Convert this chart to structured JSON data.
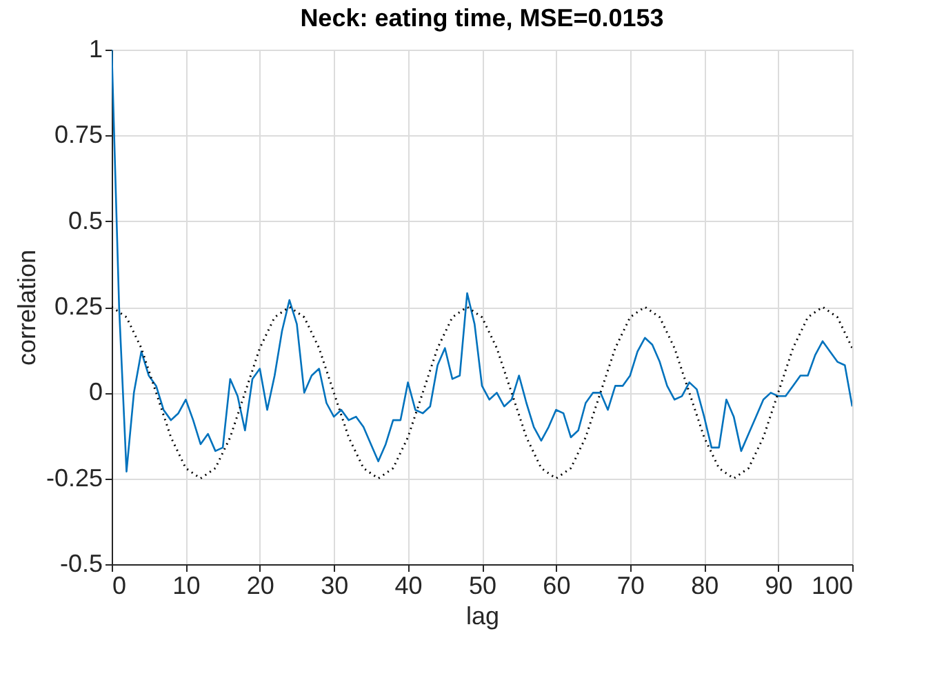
{
  "chart_data": {
    "type": "line",
    "title": "Neck: eating time, MSE=0.0153",
    "xlabel": "lag",
    "ylabel": "correlation",
    "xlim": [
      0,
      100
    ],
    "xticks": [
      0,
      10,
      20,
      30,
      40,
      50,
      60,
      70,
      80,
      90,
      100
    ],
    "ylim": [
      -0.5,
      1
    ],
    "yticks": [
      -0.5,
      -0.25,
      0,
      0.25,
      0.5,
      0.75,
      1
    ],
    "grid": true,
    "series": [
      {
        "color": "#0072bd",
        "line_style": "solid",
        "x": [
          0,
          1,
          2,
          3,
          4,
          5,
          6,
          7,
          8,
          9,
          10,
          11,
          12,
          13,
          14,
          15,
          16,
          17,
          18,
          19,
          20,
          21,
          22,
          23,
          24,
          25,
          26,
          27,
          28,
          29,
          30,
          31,
          32,
          33,
          34,
          35,
          36,
          37,
          38,
          39,
          40,
          41,
          42,
          43,
          44,
          45,
          46,
          47,
          48,
          49,
          50,
          51,
          52,
          53,
          54,
          55,
          56,
          57,
          58,
          59,
          60,
          61,
          62,
          63,
          64,
          65,
          66,
          67,
          68,
          69,
          70,
          71,
          72,
          73,
          74,
          75,
          76,
          77,
          78,
          79,
          80,
          81,
          82,
          83,
          84,
          85,
          86,
          87,
          88,
          89,
          90,
          91,
          92,
          93,
          94,
          95,
          96,
          97,
          98,
          99,
          100
        ],
        "values": [
          1.0,
          0.25,
          -0.23,
          0.0,
          0.12,
          0.05,
          0.02,
          -0.05,
          -0.08,
          -0.06,
          -0.02,
          -0.08,
          -0.15,
          -0.12,
          -0.17,
          -0.16,
          0.04,
          -0.01,
          -0.11,
          0.04,
          0.07,
          -0.05,
          0.05,
          0.18,
          0.27,
          0.2,
          0.0,
          0.05,
          0.07,
          -0.03,
          -0.07,
          -0.05,
          -0.08,
          -0.07,
          -0.1,
          -0.15,
          -0.2,
          -0.15,
          -0.08,
          -0.08,
          0.03,
          -0.05,
          -0.06,
          -0.04,
          0.08,
          0.13,
          0.04,
          0.05,
          0.29,
          0.2,
          0.02,
          -0.02,
          0.0,
          -0.04,
          -0.02,
          0.05,
          -0.03,
          -0.1,
          -0.14,
          -0.1,
          -0.05,
          -0.06,
          -0.13,
          -0.11,
          -0.03,
          0.0,
          0.0,
          -0.05,
          0.02,
          0.02,
          0.05,
          0.12,
          0.16,
          0.14,
          0.09,
          0.02,
          -0.02,
          -0.01,
          0.03,
          0.01,
          -0.07,
          -0.16,
          -0.16,
          -0.02,
          -0.07,
          -0.17,
          -0.12,
          -0.07,
          -0.02,
          0.0,
          -0.01,
          -0.01,
          0.02,
          0.05,
          0.05,
          0.11,
          0.15,
          0.12,
          0.09,
          0.08,
          -0.04
        ]
      },
      {
        "color": "#000000",
        "line_style": "dotted",
        "x": [
          0,
          2,
          4,
          6,
          8,
          10,
          12,
          14,
          16,
          18,
          20,
          22,
          24,
          26,
          28,
          30,
          32,
          34,
          36,
          38,
          40,
          42,
          44,
          46,
          48,
          50,
          52,
          54,
          56,
          58,
          60,
          62,
          64,
          66,
          68,
          70,
          72,
          74,
          76,
          78,
          80,
          82,
          84,
          86,
          88,
          90,
          92,
          94,
          96,
          98,
          100
        ],
        "values": [
          0.25,
          0.22,
          0.13,
          0,
          -0.13,
          -0.22,
          -0.25,
          -0.22,
          -0.13,
          0,
          0.13,
          0.22,
          0.25,
          0.22,
          0.13,
          0,
          -0.13,
          -0.22,
          -0.25,
          -0.22,
          -0.13,
          0,
          0.13,
          0.22,
          0.25,
          0.22,
          0.13,
          0,
          -0.13,
          -0.22,
          -0.25,
          -0.22,
          -0.13,
          0,
          0.13,
          0.22,
          0.25,
          0.22,
          0.13,
          0,
          -0.13,
          -0.22,
          -0.25,
          -0.22,
          -0.13,
          0,
          0.13,
          0.22,
          0.25,
          0.22,
          0.13
        ]
      }
    ]
  }
}
